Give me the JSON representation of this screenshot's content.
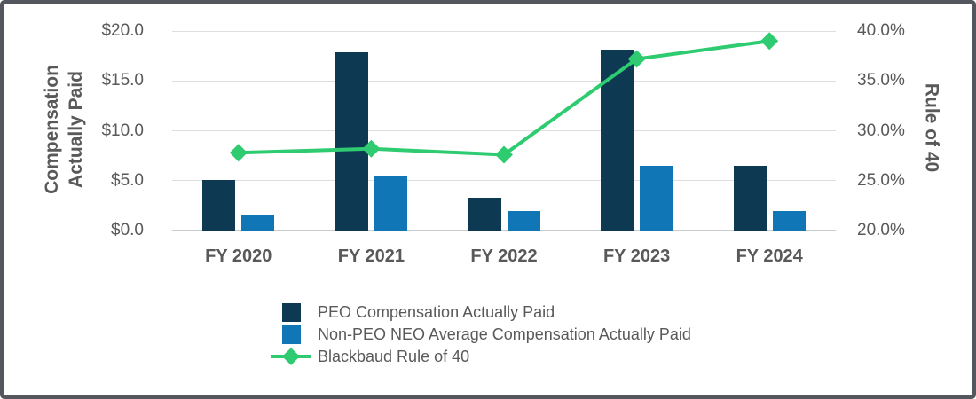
{
  "chart_data": {
    "type": "bar+line",
    "categories": [
      "FY 2020",
      "FY 2021",
      "FY 2022",
      "FY 2023",
      "FY 2024"
    ],
    "series": [
      {
        "name": "PEO Compensation Actually Paid",
        "type": "bar",
        "axis": "left",
        "color": "#0D3A52",
        "values": [
          5.1,
          17.9,
          3.3,
          18.1,
          6.5
        ]
      },
      {
        "name": "Non-PEO NEO Average Compensation Actually Paid",
        "type": "bar",
        "axis": "left",
        "color": "#1176B5",
        "values": [
          1.5,
          5.4,
          2.0,
          6.5,
          2.0
        ]
      },
      {
        "name": "Blackbaud Rule of 40",
        "type": "line",
        "axis": "right",
        "color": "#2ECB71",
        "marker": "diamond",
        "values": [
          27.8,
          28.2,
          27.6,
          37.2,
          39.0
        ]
      }
    ],
    "left_axis": {
      "title_lines": [
        "Compensation",
        "Actually Paid"
      ],
      "min": 0,
      "max": 20,
      "ticks": [
        20,
        15,
        10,
        5,
        0
      ],
      "tick_labels": [
        "$20.0",
        "$15.0",
        "$10.0",
        "$5.0",
        "$0.0"
      ]
    },
    "right_axis": {
      "title": "Rule of 40",
      "min": 20,
      "max": 40,
      "ticks": [
        40,
        35,
        30,
        25,
        20
      ],
      "tick_labels": [
        "40.0%",
        "35.0%",
        "30.0%",
        "25.0%",
        "20.0%"
      ]
    },
    "grid": true,
    "legend_position": "bottom-center",
    "styles": {
      "grid_color": "#DEDEDE",
      "axis_line_color": "#C9CCCE",
      "text_color": "#595959",
      "frame_border_color": "#54575D",
      "background": "#FFFFFF"
    }
  }
}
